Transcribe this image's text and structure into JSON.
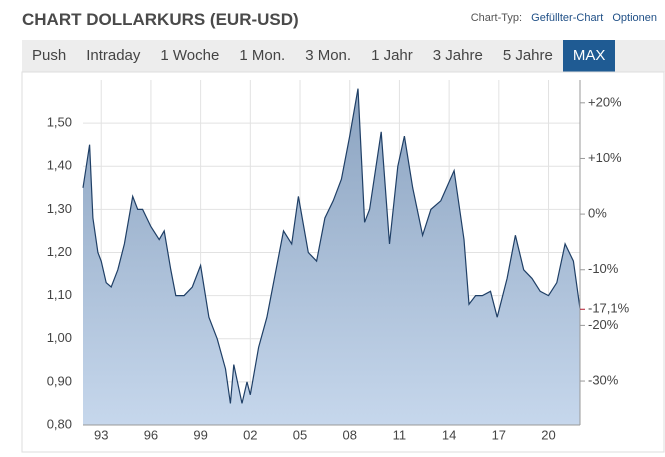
{
  "header": {
    "chart_type_label": "Chart-Typ:",
    "chart_type": "Gefüllter-Chart",
    "options": "Optionen"
  },
  "tabs": [
    "Push",
    "Intraday",
    "1 Woche",
    "1 Mon.",
    "3 Mon.",
    "1 Jahr",
    "3 Jahre",
    "5 Jahre",
    "MAX"
  ],
  "selected_tab": 8,
  "chart_data": {
    "type": "area",
    "title": "CHART DOLLARKURS (EUR-USD)",
    "x": [
      1991.9,
      1992.1,
      1992.3,
      1992.5,
      1992.8,
      1993.0,
      1993.3,
      1993.6,
      1994.0,
      1994.4,
      1994.9,
      1995.2,
      1995.5,
      1996.0,
      1996.5,
      1996.8,
      1997.2,
      1997.5,
      1998.0,
      1998.5,
      1999.0,
      1999.5,
      2000.0,
      2000.5,
      2000.8,
      2001.0,
      2001.5,
      2001.8,
      2002.0,
      2002.5,
      2003.0,
      2003.5,
      2004.0,
      2004.5,
      2004.9,
      2005.5,
      2006.0,
      2006.5,
      2007.0,
      2007.5,
      2008.0,
      2008.5,
      2008.9,
      2009.2,
      2009.9,
      2010.4,
      2010.9,
      2011.3,
      2011.8,
      2012.4,
      2012.9,
      2013.5,
      2014.3,
      2014.9,
      2015.2,
      2015.6,
      2016.0,
      2016.5,
      2016.9,
      2017.5,
      2018.0,
      2018.5,
      2019.0,
      2019.5,
      2020.0,
      2020.5,
      2021.0,
      2021.5,
      2021.9
    ],
    "values": [
      1.35,
      1.4,
      1.45,
      1.28,
      1.2,
      1.18,
      1.13,
      1.12,
      1.16,
      1.22,
      1.33,
      1.3,
      1.3,
      1.26,
      1.23,
      1.25,
      1.16,
      1.1,
      1.1,
      1.12,
      1.17,
      1.05,
      1.0,
      0.93,
      0.85,
      0.94,
      0.85,
      0.9,
      0.87,
      0.98,
      1.05,
      1.15,
      1.25,
      1.22,
      1.33,
      1.2,
      1.18,
      1.28,
      1.32,
      1.37,
      1.47,
      1.58,
      1.27,
      1.3,
      1.48,
      1.22,
      1.4,
      1.47,
      1.35,
      1.24,
      1.3,
      1.32,
      1.39,
      1.23,
      1.08,
      1.1,
      1.1,
      1.11,
      1.05,
      1.14,
      1.24,
      1.16,
      1.14,
      1.11,
      1.1,
      1.13,
      1.22,
      1.18,
      1.07
    ],
    "line_color": "#1f3f66",
    "fill_top": "#8ba3c0",
    "fill_bottom": "#c6d7ec",
    "xlim": [
      1991.9,
      2021.9
    ],
    "xticks": [
      {
        "value": 1993,
        "label": "93"
      },
      {
        "value": 1996,
        "label": "96"
      },
      {
        "value": 1999,
        "label": "99"
      },
      {
        "value": 2002,
        "label": "02"
      },
      {
        "value": 2005,
        "label": "05"
      },
      {
        "value": 2008,
        "label": "08"
      },
      {
        "value": 2011,
        "label": "11"
      },
      {
        "value": 2014,
        "label": "14"
      },
      {
        "value": 2017,
        "label": "17"
      },
      {
        "value": 2020,
        "label": "20"
      }
    ],
    "ylim": [
      0.8,
      1.6
    ],
    "yticks": [
      {
        "value": 0.8,
        "label": "0,80"
      },
      {
        "value": 0.9,
        "label": "0,90"
      },
      {
        "value": 1.0,
        "label": "1,00"
      },
      {
        "value": 1.1,
        "label": "1,10"
      },
      {
        "value": 1.2,
        "label": "1,20"
      },
      {
        "value": 1.3,
        "label": "1,30"
      },
      {
        "value": 1.4,
        "label": "1,40"
      },
      {
        "value": 1.5,
        "label": "1,50"
      }
    ],
    "y2lim": [
      -37.9,
      24.1
    ],
    "y2ticks": [
      {
        "value": -30,
        "label": "-30%"
      },
      {
        "value": -20,
        "label": "-20%"
      },
      {
        "value": -10,
        "label": "-10%"
      },
      {
        "value": 0,
        "label": "0%"
      },
      {
        "value": 10,
        "label": "+10%"
      },
      {
        "value": 20,
        "label": "+20%"
      }
    ],
    "current": {
      "value": -17.1,
      "label": "-17,1%",
      "color": "#b0182a"
    },
    "grid": true
  }
}
